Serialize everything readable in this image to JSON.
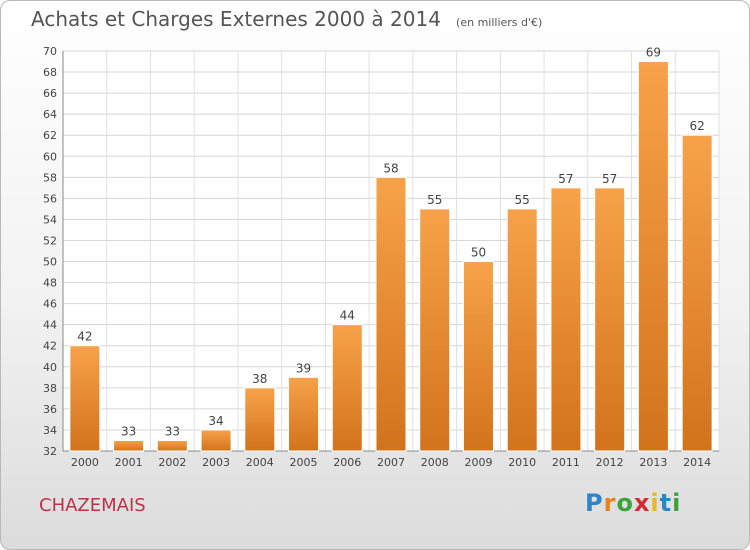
{
  "header": {
    "title": "Achats et Charges Externes 2000 à 2014",
    "subtitle": "(en milliers d'€)"
  },
  "footer": {
    "commune": "CHAZEMAIS",
    "logo": {
      "letters": [
        "P",
        "r",
        "o",
        "x",
        "i",
        "t",
        "i"
      ],
      "colors": [
        "#2a86c8",
        "#e8821e",
        "#3aa33a",
        "#d8282e",
        "#e8b81e",
        "#2a86c8",
        "#3aa33a"
      ]
    }
  },
  "chart_data": {
    "type": "bar",
    "categories": [
      "2000",
      "2001",
      "2002",
      "2003",
      "2004",
      "2005",
      "2006",
      "2007",
      "2008",
      "2009",
      "2010",
      "2011",
      "2012",
      "2013",
      "2014"
    ],
    "values": [
      42,
      33,
      33,
      34,
      38,
      39,
      44,
      58,
      55,
      50,
      55,
      57,
      57,
      69,
      62
    ],
    "ylim": [
      32,
      70
    ],
    "yticks": [
      32,
      34,
      36,
      38,
      40,
      42,
      44,
      46,
      48,
      50,
      52,
      54,
      56,
      58,
      60,
      62,
      64,
      66,
      68,
      70
    ],
    "grid": true,
    "bar_color": "#f39a3c"
  }
}
